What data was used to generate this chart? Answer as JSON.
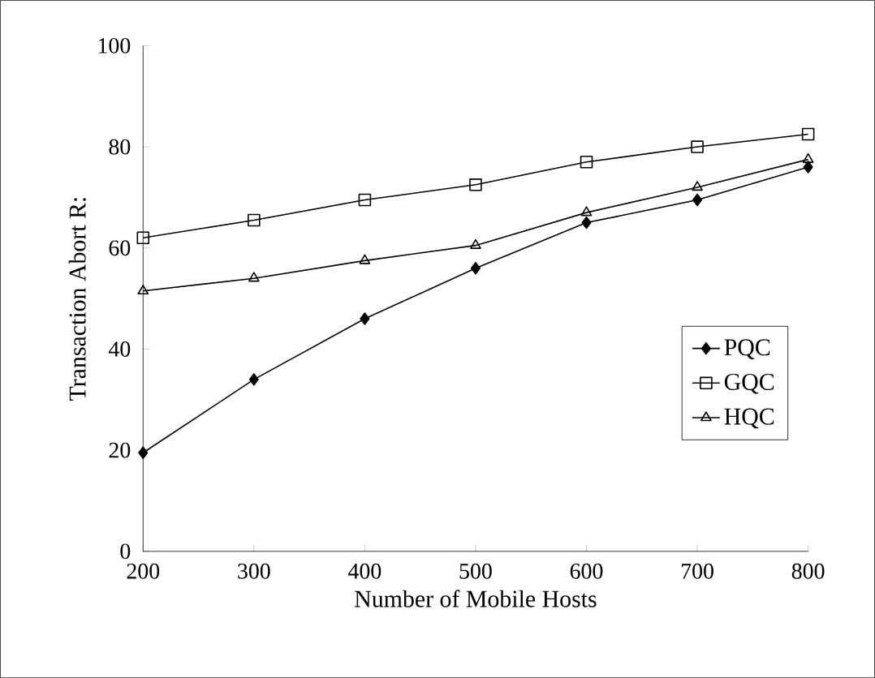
{
  "chart_data": {
    "type": "line",
    "xlabel": "Number of Mobile Hosts",
    "ylabel": "Transaction Abort R:",
    "x": [
      200,
      300,
      400,
      500,
      600,
      700,
      800
    ],
    "series": [
      {
        "name": "PQC",
        "color": "#000000",
        "marker": "diamond",
        "values": [
          19.5,
          34,
          46,
          56,
          65,
          69.5,
          76
        ]
      },
      {
        "name": "GQC",
        "color": "#000000",
        "marker": "square",
        "values": [
          62,
          65.5,
          69.5,
          72.5,
          77,
          80,
          82.5
        ]
      },
      {
        "name": "HQC",
        "color": "#000000",
        "marker": "triangle",
        "values": [
          51.5,
          54,
          57.5,
          60.5,
          67,
          72,
          77.5
        ]
      }
    ],
    "xlim": [
      200,
      800
    ],
    "xticks": [
      200,
      300,
      400,
      500,
      600,
      700,
      800
    ],
    "ylim": [
      0,
      100
    ],
    "yticks": [
      0,
      20,
      40,
      60,
      80,
      100
    ],
    "grid": false,
    "legend": "bottom right",
    "line_style": "solid"
  }
}
